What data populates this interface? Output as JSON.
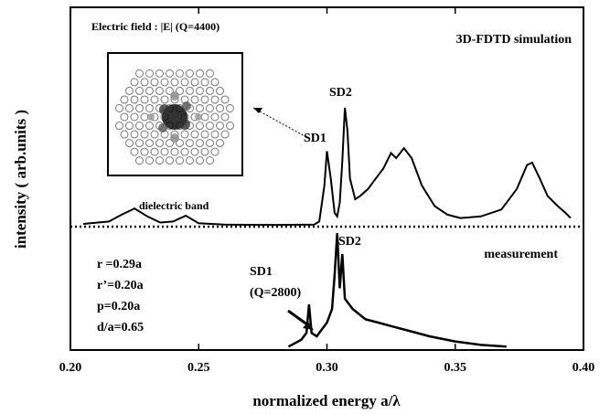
{
  "chart_data": {
    "type": "line",
    "x_label": "normalized energy a/λ",
    "y_label": "intensity ( arb.units )",
    "xlim": [
      0.2,
      0.4
    ],
    "xticks": [
      {
        "value": 0.2,
        "label": "0.20"
      },
      {
        "value": 0.25,
        "label": "0.25"
      },
      {
        "value": 0.3,
        "label": "0.30"
      },
      {
        "value": 0.35,
        "label": "0.35"
      },
      {
        "value": 0.4,
        "label": "0.40"
      }
    ],
    "ylim": [
      0,
      10
    ],
    "separator_y": 3.6,
    "series": [
      {
        "name": "3D-FDTD simulation",
        "color": "#000000",
        "x": [
          0.205,
          0.215,
          0.22,
          0.225,
          0.23,
          0.235,
          0.24,
          0.245,
          0.25,
          0.26,
          0.28,
          0.295,
          0.297,
          0.299,
          0.3,
          0.3015,
          0.303,
          0.304,
          0.305,
          0.306,
          0.307,
          0.308,
          0.309,
          0.311,
          0.313,
          0.316,
          0.318,
          0.322,
          0.325,
          0.327,
          0.33,
          0.333,
          0.337,
          0.342,
          0.347,
          0.352,
          0.36,
          0.368,
          0.374,
          0.378,
          0.38,
          0.383,
          0.386,
          0.39,
          0.393,
          0.395
        ],
        "values": [
          3.68,
          3.75,
          3.95,
          4.13,
          3.9,
          3.72,
          3.75,
          3.92,
          3.7,
          3.66,
          3.65,
          3.66,
          3.75,
          4.8,
          5.8,
          5.0,
          4.0,
          3.9,
          4.3,
          5.5,
          7.07,
          6.4,
          5.0,
          4.4,
          4.5,
          4.7,
          4.9,
          5.3,
          5.75,
          5.6,
          5.89,
          5.6,
          4.8,
          4.2,
          3.95,
          3.85,
          3.9,
          4.1,
          4.7,
          5.4,
          5.47,
          5.0,
          4.5,
          4.2,
          4.0,
          3.85
        ]
      },
      {
        "name": "measurement",
        "color": "#000000",
        "x": [
          0.285,
          0.29,
          0.292,
          0.293,
          0.294,
          0.296,
          0.298,
          0.3,
          0.302,
          0.303,
          0.304,
          0.305,
          0.306,
          0.307,
          0.31,
          0.315,
          0.32,
          0.325,
          0.33,
          0.34,
          0.35,
          0.36,
          0.37
        ],
        "values": [
          0.1,
          0.3,
          0.5,
          1.33,
          0.5,
          0.4,
          0.6,
          0.8,
          1.2,
          2.2,
          3.41,
          1.8,
          2.8,
          1.5,
          1.2,
          0.9,
          0.8,
          0.7,
          0.6,
          0.4,
          0.25,
          0.15,
          0.1
        ]
      }
    ],
    "annotations": [
      "Electric field : |E| (Q=4400)",
      "SD1",
      "SD2",
      "dielectric band",
      "SD1",
      "(Q=2800)",
      "SD2",
      "r =0.29a",
      "r’=0.20a",
      "p=0.20a",
      "d/a=0.65"
    ]
  }
}
